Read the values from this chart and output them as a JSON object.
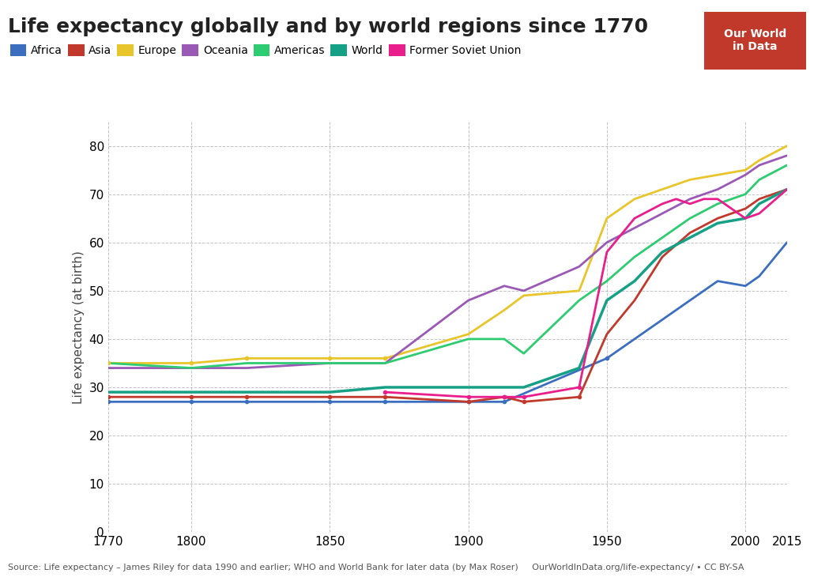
{
  "title": "Life expectancy globally and by world regions since 1770",
  "ylabel": "Life expectancy (at birth)",
  "source_text": "Source: Life expectancy – James Riley for data 1990 and earlier; WHO and World Bank for later data (by Max Roser)     OurWorldInData.org/life-expectancy/ • CC BY-SA",
  "xlim": [
    1770,
    2015
  ],
  "ylim": [
    0,
    85
  ],
  "yticks": [
    0,
    10,
    20,
    30,
    40,
    50,
    60,
    70,
    80
  ],
  "xticks": [
    1770,
    1800,
    1850,
    1900,
    1950,
    2000,
    2015
  ],
  "series": {
    "Africa": {
      "color": "#3B6EBF",
      "data": {
        "1770": 27,
        "1800": 27,
        "1820": 27,
        "1850": 27,
        "1870": 27,
        "1900": 27,
        "1913": 27,
        "1950": 36,
        "1960": 40,
        "1970": 44,
        "1980": 48,
        "1990": 52,
        "2000": 51,
        "2005": 53,
        "2015": 60
      }
    },
    "Asia": {
      "color": "#C0392B",
      "data": {
        "1770": 28,
        "1800": 28,
        "1820": 28,
        "1850": 28,
        "1870": 28,
        "1900": 27,
        "1913": 28,
        "1920": 27,
        "1940": 28,
        "1950": 41,
        "1960": 48,
        "1970": 57,
        "1980": 62,
        "1990": 65,
        "2000": 67,
        "2005": 69,
        "2015": 71
      }
    },
    "Europe": {
      "color": "#E8C52A",
      "data": {
        "1770": 35,
        "1800": 35,
        "1820": 36,
        "1850": 36,
        "1870": 36,
        "1900": 41,
        "1913": 46,
        "1920": 49,
        "1940": 50,
        "1950": 65,
        "1960": 69,
        "1970": 71,
        "1980": 73,
        "1990": 74,
        "2000": 75,
        "2005": 77,
        "2015": 80
      }
    },
    "Oceania": {
      "color": "#9B59B6",
      "data": {
        "1770": 34,
        "1800": 34,
        "1820": 34,
        "1850": 35,
        "1870": 35,
        "1900": 48,
        "1913": 51,
        "1920": 50,
        "1940": 55,
        "1950": 60,
        "1960": 63,
        "1970": 66,
        "1980": 69,
        "1990": 71,
        "2000": 74,
        "2005": 76,
        "2015": 78
      }
    },
    "Americas": {
      "color": "#2ECC71",
      "data": {
        "1770": 35,
        "1800": 34,
        "1820": 35,
        "1850": 35,
        "1870": 35,
        "1900": 40,
        "1913": 40,
        "1920": 37,
        "1940": 48,
        "1950": 52,
        "1960": 57,
        "1970": 61,
        "1980": 65,
        "1990": 68,
        "2000": 70,
        "2005": 73,
        "2015": 76
      }
    },
    "World": {
      "color": "#16A085",
      "data": {
        "1770": 29,
        "1800": 29,
        "1820": 29,
        "1850": 29,
        "1870": 30,
        "1900": 30,
        "1913": 30,
        "1920": 30,
        "1940": 34,
        "1950": 48,
        "1960": 52,
        "1970": 58,
        "1980": 61,
        "1990": 64,
        "2000": 65,
        "2005": 68,
        "2015": 71
      }
    },
    "Former Soviet Union": {
      "color": "#E91E8C",
      "data": {
        "1870": 29,
        "1900": 28,
        "1913": 28,
        "1920": 28,
        "1940": 30,
        "1950": 58,
        "1960": 65,
        "1970": 68,
        "1975": 69,
        "1980": 68,
        "1985": 69,
        "1990": 69,
        "2000": 65,
        "2005": 66,
        "2015": 71
      }
    }
  },
  "legend_order": [
    "Africa",
    "Asia",
    "Europe",
    "Oceania",
    "Americas",
    "World",
    "Former Soviet Union"
  ],
  "legend_colors": {
    "Africa": "#3B6EBF",
    "Asia": "#C0392B",
    "Europe": "#E8C52A",
    "Oceania": "#9B59B6",
    "Americas": "#2ECC71",
    "World": "#16A085",
    "Former Soviet Union": "#E91E8C"
  }
}
